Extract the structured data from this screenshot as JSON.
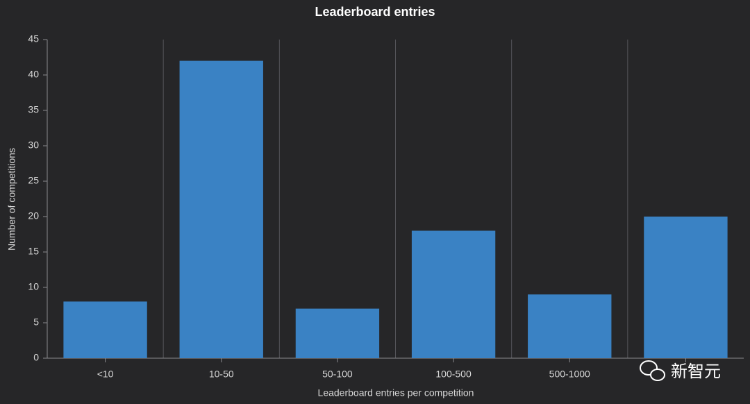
{
  "chart_data": {
    "type": "bar",
    "title": "Leaderboard entries",
    "x_label": "Leaderboard entries per competition",
    "y_label": "Number of competitions",
    "categories": [
      "<10",
      "10-50",
      "50-100",
      "100-500",
      "500-1000",
      null
    ],
    "values": [
      8,
      42,
      7,
      18,
      9,
      20
    ],
    "color": "#3a82c4",
    "ylim": [
      0,
      45
    ],
    "yticks": [
      0,
      5,
      10,
      15,
      20,
      25,
      30,
      35,
      40,
      45
    ]
  },
  "watermark": "新智元"
}
